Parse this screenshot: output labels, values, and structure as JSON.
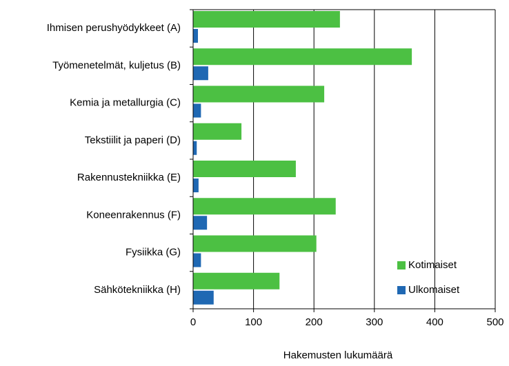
{
  "chart_data": {
    "type": "hbar",
    "categories": [
      "Ihmisen perushyödykkeet (A)",
      "Työmenetelmät, kuljetus (B)",
      "Kemia ja metallurgia (C)",
      "Tekstiilit ja paperi (D)",
      "Rakennustekniikka (E)",
      "Koneenrakennus (F)",
      "Fysiikka (G)",
      "Sähkötekniikka (H)"
    ],
    "series": [
      {
        "name": "Kotimaiset",
        "color": "#4cc043",
        "values": [
          243,
          362,
          217,
          80,
          170,
          236,
          204,
          143
        ]
      },
      {
        "name": "Ulkomaiset",
        "color": "#1f68b3",
        "values": [
          8,
          25,
          13,
          6,
          9,
          23,
          13,
          34
        ]
      }
    ],
    "xlabel": "Hakemusten lukumäärä",
    "xlim": [
      0,
      500
    ],
    "xticks": [
      0,
      100,
      200,
      300,
      400,
      500
    ],
    "grid": true,
    "legend": "lower right"
  }
}
